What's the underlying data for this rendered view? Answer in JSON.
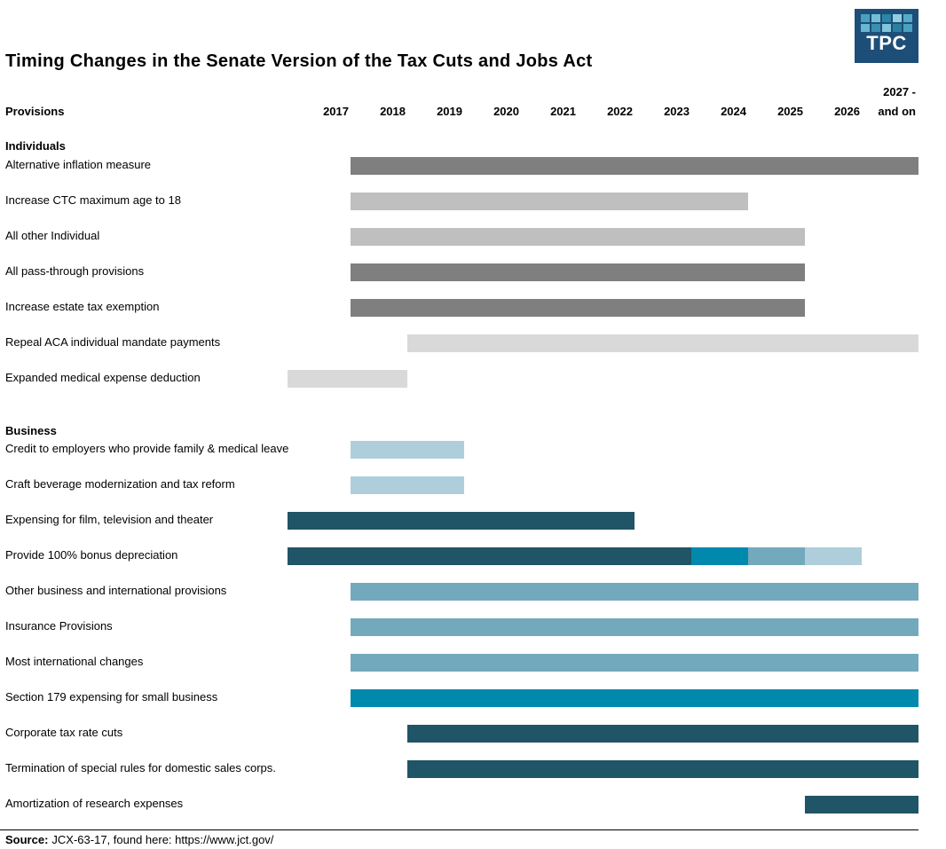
{
  "header": {
    "title": "Timing Changes in the Senate Version of the Tax Cuts and Jobs Act",
    "logo": {
      "text": "TPC",
      "background": "#1d4e78",
      "squares": [
        "#4ba0bf",
        "#76bed6",
        "#2d85a7",
        "#93cde0",
        "#55abc7",
        "#68b6cf",
        "#3990b1",
        "#83c5da",
        "#2a7f9f",
        "#49a2c0"
      ]
    }
  },
  "table": {
    "provisions_label": "Provisions",
    "year_columns": [
      "2017",
      "2018",
      "2019",
      "2020",
      "2021",
      "2022",
      "2023",
      "2024",
      "2025",
      "2026"
    ],
    "last_column": {
      "line1": "2027 -",
      "line2": "and on"
    }
  },
  "colors": {
    "dark_gray": "#7f7f7f",
    "light_gray": "#bfbfbf",
    "pale_gray": "#d9d9d9",
    "dark_teal": "#1f5566",
    "bright_blue": "#0089ad",
    "medium_blue": "#73a9bd",
    "pale_blue": "#afcedb"
  },
  "chart_data": {
    "type": "bar",
    "subtype": "gantt-timeline",
    "title": "Timing Changes in the Senate Version of the Tax Cuts and Jobs Act",
    "xlabel": "",
    "columns": [
      "2017",
      "2018",
      "2019",
      "2020",
      "2021",
      "2022",
      "2023",
      "2024",
      "2025",
      "2026",
      "2027+"
    ],
    "legend": "none",
    "grid": false,
    "sections": [
      {
        "name": "Individuals",
        "rows": [
          {
            "label": "Alternative inflation measure",
            "bars": [
              {
                "from": "2018",
                "to": "2027+",
                "color": "dark_gray"
              }
            ]
          },
          {
            "label": "Increase CTC maximum age to 18",
            "bars": [
              {
                "from": "2018",
                "to": "2024",
                "color": "light_gray"
              }
            ]
          },
          {
            "label": "All other Individual",
            "bars": [
              {
                "from": "2018",
                "to": "2025",
                "color": "light_gray"
              }
            ]
          },
          {
            "label": "All pass-through provisions",
            "bars": [
              {
                "from": "2018",
                "to": "2025",
                "color": "dark_gray"
              }
            ]
          },
          {
            "label": "Increase estate tax exemption",
            "bars": [
              {
                "from": "2018",
                "to": "2025",
                "color": "dark_gray"
              }
            ]
          },
          {
            "label": "Repeal ACA individual mandate payments",
            "bars": [
              {
                "from": "2019",
                "to": "2027+",
                "color": "pale_gray"
              }
            ]
          },
          {
            "label": "Expanded medical expense deduction",
            "bars": [
              {
                "from": "2017",
                "to": "2018",
                "color": "pale_gray"
              }
            ]
          }
        ]
      },
      {
        "name": "Business",
        "rows": [
          {
            "label": "Credit to employers who provide family & medical leave",
            "bars": [
              {
                "from": "2018",
                "to": "2019",
                "color": "pale_blue"
              }
            ]
          },
          {
            "label": "Craft beverage modernization and tax reform",
            "bars": [
              {
                "from": "2018",
                "to": "2019",
                "color": "pale_blue"
              }
            ]
          },
          {
            "label": "Expensing for film, television and theater",
            "bars": [
              {
                "from": "2017",
                "to": "2022",
                "color": "dark_teal"
              }
            ]
          },
          {
            "label": "Provide 100% bonus depreciation",
            "bars": [
              {
                "from": "2017",
                "to": "2023",
                "color": "dark_teal"
              },
              {
                "from": "2024",
                "to": "2024",
                "color": "bright_blue"
              },
              {
                "from": "2025",
                "to": "2025",
                "color": "medium_blue"
              },
              {
                "from": "2026",
                "to": "2026",
                "color": "pale_blue"
              }
            ]
          },
          {
            "label": "Other business and international provisions",
            "bars": [
              {
                "from": "2018",
                "to": "2027+",
                "color": "medium_blue"
              }
            ]
          },
          {
            "label": "Insurance Provisions",
            "bars": [
              {
                "from": "2018",
                "to": "2027+",
                "color": "medium_blue"
              }
            ]
          },
          {
            "label": "Most international changes",
            "bars": [
              {
                "from": "2018",
                "to": "2027+",
                "color": "medium_blue"
              }
            ]
          },
          {
            "label": "Section 179 expensing for small business",
            "bars": [
              {
                "from": "2018",
                "to": "2027+",
                "color": "bright_blue"
              }
            ]
          },
          {
            "label": "Corporate tax rate cuts",
            "bars": [
              {
                "from": "2019",
                "to": "2027+",
                "color": "dark_teal"
              }
            ]
          },
          {
            "label": "Termination of special rules for domestic sales corps.",
            "bars": [
              {
                "from": "2019",
                "to": "2027+",
                "color": "dark_teal"
              }
            ]
          },
          {
            "label": "Amortization of research expenses",
            "bars": [
              {
                "from": "2026",
                "to": "2027+",
                "color": "dark_teal"
              }
            ]
          }
        ]
      }
    ]
  },
  "footer": {
    "source_label": "Source:",
    "source_text": "JCX-63-17, found here: https://www.jct.gov/"
  }
}
